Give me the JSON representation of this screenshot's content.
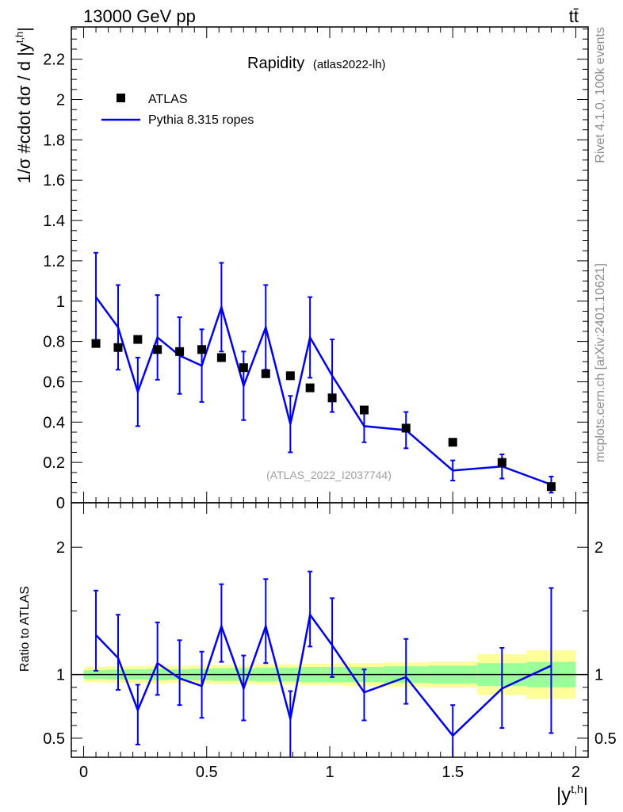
{
  "header": {
    "left": "13000 GeV pp",
    "right": "tt̄"
  },
  "side_text": {
    "upper": "Rivet 4.1.0,  100k events",
    "lower": "mcplots.cern.ch [arXiv:2401.10621]"
  },
  "chart_data": {
    "type": "scatter",
    "title": "Rapidity",
    "subtitle": "(atlas2022-lh)",
    "analysis_id": "(ATLAS_2022_I2037744)",
    "xlabel": "|y",
    "xlabel_sup": "t,h",
    "xlabel_end": "|",
    "ylabel": "1/σ #cdot dσ / d |y",
    "ylabel_sup": "t,h",
    "ylabel_end": "|",
    "ratio_ylabel": "Ratio to ATLAS",
    "xlim": [
      -0.05,
      2.05
    ],
    "main_ylim": [
      0,
      2.36
    ],
    "ratio_ylim": [
      0.35,
      2.35
    ],
    "main_yticks": [
      {
        "v": 0,
        "label": "0"
      },
      {
        "v": 0.2,
        "label": "0.2"
      },
      {
        "v": 0.4,
        "label": "0.4"
      },
      {
        "v": 0.6,
        "label": "0.6"
      },
      {
        "v": 0.8,
        "label": "0.8"
      },
      {
        "v": 1.0,
        "label": "1"
      },
      {
        "v": 1.2,
        "label": "1.2"
      },
      {
        "v": 1.4,
        "label": "1.4"
      },
      {
        "v": 1.6,
        "label": "1.6"
      },
      {
        "v": 1.8,
        "label": "1.8"
      },
      {
        "v": 2.0,
        "label": "2"
      },
      {
        "v": 2.2,
        "label": "2.2"
      }
    ],
    "ratio_yticks": [
      {
        "v": 0.5,
        "label": "0.5"
      },
      {
        "v": 1.0,
        "label": "1"
      },
      {
        "v": 2.0,
        "label": "2"
      }
    ],
    "xticks": [
      {
        "v": 0,
        "label": "0"
      },
      {
        "v": 0.5,
        "label": "0.5"
      },
      {
        "v": 1.0,
        "label": "1"
      },
      {
        "v": 1.5,
        "label": "1.5"
      },
      {
        "v": 2.0,
        "label": "2"
      }
    ],
    "legend": [
      {
        "name": "ATLAS",
        "marker": "square",
        "color": "#000000"
      },
      {
        "name": "Pythia 8.315 ropes",
        "marker": "line",
        "color": "#0000ee"
      }
    ],
    "bins": [
      {
        "lo": 0.0,
        "hi": 0.09
      },
      {
        "lo": 0.09,
        "hi": 0.18
      },
      {
        "lo": 0.18,
        "hi": 0.26
      },
      {
        "lo": 0.26,
        "hi": 0.34
      },
      {
        "lo": 0.34,
        "hi": 0.43
      },
      {
        "lo": 0.43,
        "hi": 0.52
      },
      {
        "lo": 0.52,
        "hi": 0.61
      },
      {
        "lo": 0.61,
        "hi": 0.7
      },
      {
        "lo": 0.7,
        "hi": 0.79
      },
      {
        "lo": 0.79,
        "hi": 0.88
      },
      {
        "lo": 0.88,
        "hi": 0.97
      },
      {
        "lo": 0.97,
        "hi": 1.06
      },
      {
        "lo": 1.06,
        "hi": 1.22
      },
      {
        "lo": 1.22,
        "hi": 1.4
      },
      {
        "lo": 1.4,
        "hi": 1.6
      },
      {
        "lo": 1.6,
        "hi": 1.8
      },
      {
        "lo": 1.8,
        "hi": 2.0
      }
    ],
    "data_x": [
      0.05,
      0.14,
      0.22,
      0.3,
      0.39,
      0.48,
      0.56,
      0.65,
      0.74,
      0.84,
      0.92,
      1.01,
      1.14,
      1.31,
      1.5,
      1.7,
      1.9
    ],
    "data_y": [
      0.79,
      0.77,
      0.81,
      0.76,
      0.75,
      0.76,
      0.72,
      0.67,
      0.64,
      0.63,
      0.57,
      0.52,
      0.46,
      0.37,
      0.3,
      0.2,
      0.08
    ],
    "data_rel_unc": [
      0.035,
      0.04,
      0.04,
      0.045,
      0.04,
      0.045,
      0.05,
      0.05,
      0.055,
      0.055,
      0.06,
      0.06,
      0.06,
      0.065,
      0.07,
      0.09,
      0.1
    ],
    "data_rel_unc_outer": [
      0.06,
      0.065,
      0.065,
      0.07,
      0.065,
      0.07,
      0.075,
      0.075,
      0.08,
      0.08,
      0.085,
      0.085,
      0.09,
      0.095,
      0.1,
      0.16,
      0.19
    ],
    "mc_x": [
      0.05,
      0.14,
      0.22,
      0.3,
      0.39,
      0.48,
      0.56,
      0.65,
      0.74,
      0.84,
      0.92,
      1.01,
      1.14,
      1.31,
      1.5,
      1.7,
      1.9
    ],
    "mc_y": [
      1.02,
      0.87,
      0.55,
      0.82,
      0.73,
      0.68,
      0.97,
      0.58,
      0.87,
      0.39,
      0.82,
      0.63,
      0.38,
      0.36,
      0.16,
      0.18,
      0.09
    ],
    "mc_err": [
      0.22,
      0.21,
      0.17,
      0.21,
      0.19,
      0.18,
      0.22,
      0.17,
      0.21,
      0.14,
      0.2,
      0.18,
      0.08,
      0.09,
      0.05,
      0.06,
      0.04
    ],
    "ratio_y": [
      1.31,
      1.13,
      0.72,
      1.09,
      0.97,
      0.91,
      1.38,
      0.89,
      1.38,
      0.65,
      1.47,
      1.23,
      0.86,
      0.98,
      0.52,
      0.89,
      1.07
    ],
    "ratio_err_up": [
      0.35,
      0.34,
      0.2,
      0.32,
      0.3,
      0.27,
      0.33,
      0.26,
      0.37,
      0.22,
      0.34,
      0.37,
      0.18,
      0.3,
      0.24,
      0.32,
      0.61
    ],
    "ratio_err_dn": [
      0.28,
      0.25,
      0.27,
      0.25,
      0.21,
      0.25,
      0.28,
      0.25,
      0.29,
      0.3,
      0.25,
      0.25,
      0.22,
      0.21,
      0.17,
      0.31,
      0.53
    ]
  }
}
